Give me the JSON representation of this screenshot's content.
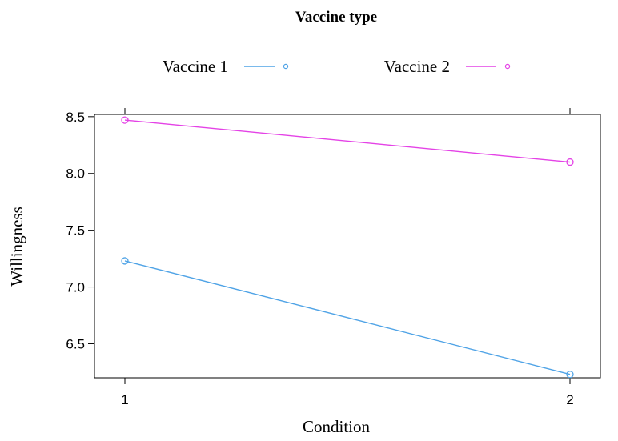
{
  "chart_data": {
    "type": "line",
    "legend_title": "Vaccine type",
    "legend_position": "top",
    "x": [
      1,
      2
    ],
    "x_tick_labels": [
      "1",
      "2"
    ],
    "xlabel": "Condition",
    "ylabel": "Willingness",
    "ylim": [
      6.2,
      8.52
    ],
    "y_ticks": [
      6.5,
      7.0,
      7.5,
      8.0,
      8.5
    ],
    "y_tick_labels": [
      "6.5",
      "7.0",
      "7.5",
      "8.0",
      "8.5"
    ],
    "grid": false,
    "series": [
      {
        "name": "Vaccine 1",
        "color": "#4fa3e6",
        "values": [
          7.23,
          6.23
        ]
      },
      {
        "name": "Vaccine 2",
        "color": "#e442e6",
        "values": [
          8.47,
          8.1
        ]
      }
    ]
  }
}
